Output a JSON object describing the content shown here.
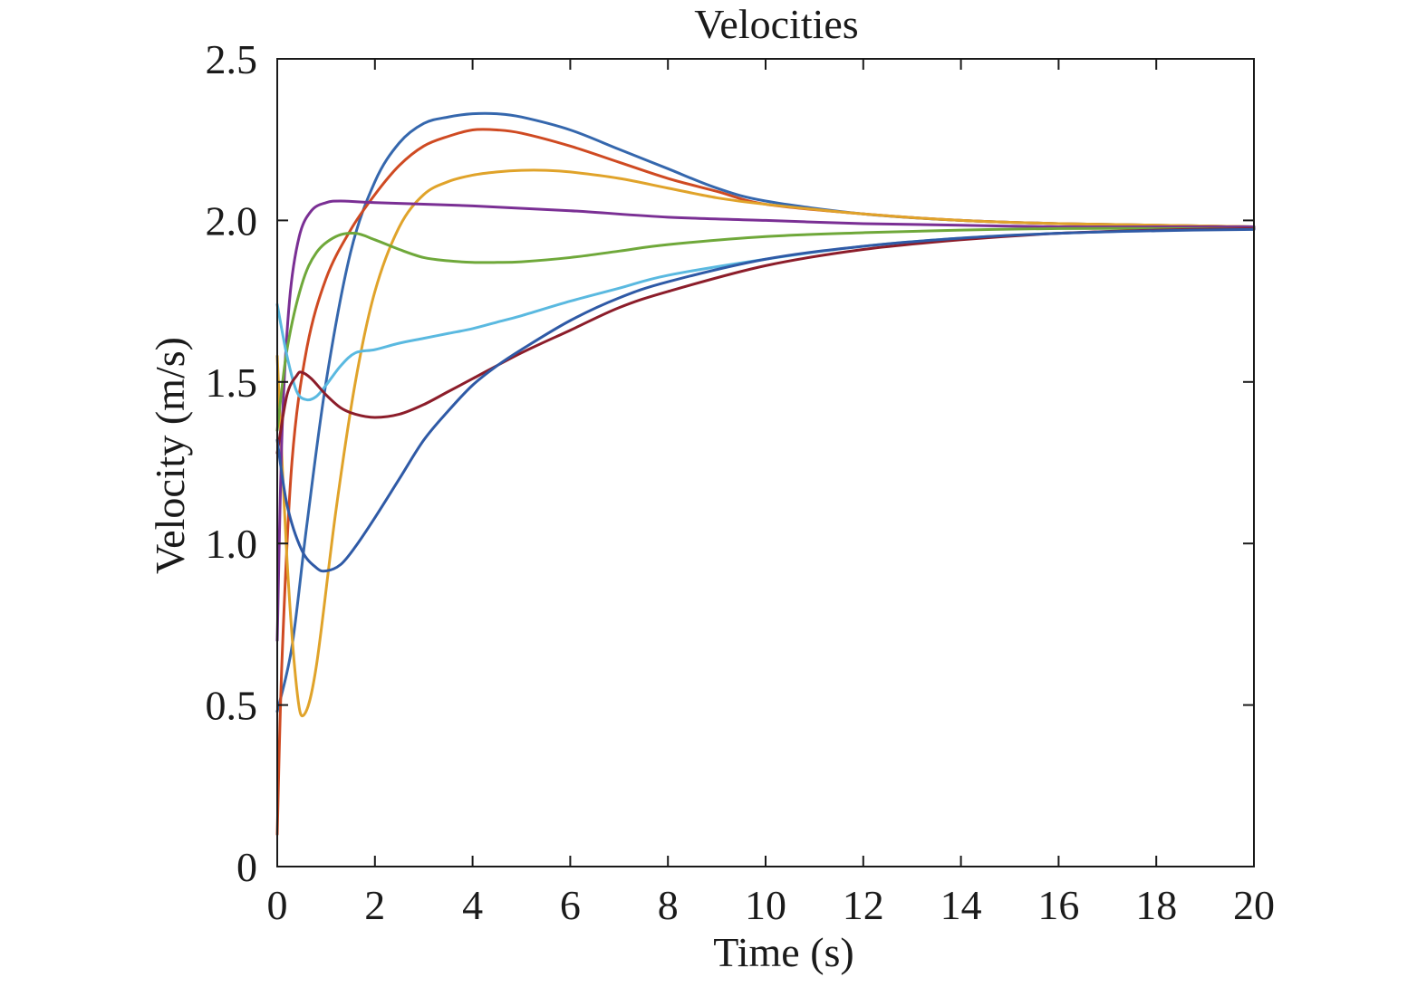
{
  "chart_data": {
    "type": "line",
    "title": "Velocities",
    "xlabel": "Time (s)",
    "ylabel": "Velocity (m/s)",
    "xlim": [
      0,
      20
    ],
    "ylim": [
      0,
      2.5
    ],
    "x_ticks": [
      0,
      2,
      4,
      6,
      8,
      10,
      12,
      14,
      16,
      18,
      20
    ],
    "x_tick_labels": [
      "0",
      "2",
      "4",
      "6",
      "8",
      "10",
      "12",
      "14",
      "16",
      "18",
      "20"
    ],
    "y_ticks": [
      0,
      0.5,
      1.0,
      1.5,
      2.0,
      2.5
    ],
    "y_tick_labels": [
      "0",
      "0.5",
      "1.0",
      "1.5",
      "2.0",
      "2.5"
    ],
    "grid": false,
    "legend": "none",
    "series": [
      {
        "color": "#3567ad",
        "x": [
          0,
          0.3,
          0.6,
          1.0,
          1.5,
          2.0,
          2.5,
          3.0,
          3.5,
          4.0,
          4.5,
          5.0,
          6.0,
          7.0,
          8.0,
          9.0,
          10.0,
          12.0,
          14.0,
          16.0,
          18.0,
          20.0
        ],
        "values": [
          0.48,
          0.68,
          1.05,
          1.5,
          1.9,
          2.12,
          2.24,
          2.3,
          2.32,
          2.33,
          2.33,
          2.32,
          2.28,
          2.22,
          2.16,
          2.1,
          2.06,
          2.02,
          2.0,
          1.99,
          1.985,
          1.98
        ]
      },
      {
        "color": "#cf4a22",
        "x": [
          0,
          0.1,
          0.3,
          0.6,
          1.0,
          1.5,
          2.0,
          2.5,
          3.0,
          3.5,
          4.0,
          4.5,
          5.0,
          6.0,
          7.0,
          8.0,
          9.0,
          10.0,
          12.0,
          14.0,
          16.0,
          18.0,
          20.0
        ],
        "values": [
          0.1,
          0.65,
          1.25,
          1.6,
          1.82,
          1.97,
          2.08,
          2.17,
          2.23,
          2.26,
          2.28,
          2.28,
          2.27,
          2.23,
          2.18,
          2.13,
          2.09,
          2.05,
          2.02,
          2.0,
          1.99,
          1.985,
          1.98
        ]
      },
      {
        "color": "#e0a32a",
        "x": [
          0,
          0.2,
          0.4,
          0.55,
          0.8,
          1.2,
          1.6,
          2.0,
          2.5,
          3.0,
          3.5,
          4.0,
          4.5,
          5.0,
          5.5,
          6.0,
          7.0,
          8.0,
          9.0,
          10.0,
          12.0,
          14.0,
          16.0,
          18.0,
          20.0
        ],
        "values": [
          1.58,
          0.95,
          0.55,
          0.47,
          0.62,
          1.1,
          1.5,
          1.78,
          1.98,
          2.08,
          2.12,
          2.14,
          2.15,
          2.155,
          2.155,
          2.15,
          2.13,
          2.1,
          2.07,
          2.05,
          2.02,
          2.0,
          1.99,
          1.985,
          1.98
        ]
      },
      {
        "color": "#7a2f94",
        "x": [
          0,
          0.1,
          0.25,
          0.45,
          0.7,
          1.0,
          1.3,
          2.0,
          4.0,
          6.0,
          8.0,
          10.0,
          12.0,
          14.0,
          16.0,
          18.0,
          20.0
        ],
        "values": [
          0.7,
          1.35,
          1.75,
          1.95,
          2.03,
          2.055,
          2.06,
          2.055,
          2.045,
          2.03,
          2.01,
          2.0,
          1.99,
          1.985,
          1.98,
          1.98,
          1.98
        ]
      },
      {
        "color": "#6fa83a",
        "x": [
          0,
          0.2,
          0.5,
          0.8,
          1.2,
          1.6,
          2.0,
          2.5,
          3.0,
          3.5,
          4.0,
          4.5,
          5.0,
          6.0,
          7.0,
          8.0,
          10.0,
          12.0,
          14.0,
          16.0,
          18.0,
          20.0
        ],
        "values": [
          1.35,
          1.6,
          1.8,
          1.9,
          1.95,
          1.96,
          1.94,
          1.91,
          1.885,
          1.875,
          1.87,
          1.87,
          1.872,
          1.885,
          1.905,
          1.925,
          1.95,
          1.962,
          1.97,
          1.975,
          1.975,
          1.975
        ]
      },
      {
        "color": "#5ab9e0",
        "x": [
          0,
          0.2,
          0.4,
          0.6,
          0.8,
          1.0,
          1.3,
          1.6,
          2.0,
          2.5,
          3.0,
          3.5,
          4.0,
          4.5,
          5.0,
          6.0,
          7.0,
          8.0,
          10.0,
          12.0,
          14.0,
          16.0,
          18.0,
          20.0
        ],
        "values": [
          1.74,
          1.58,
          1.47,
          1.445,
          1.455,
          1.49,
          1.55,
          1.59,
          1.6,
          1.62,
          1.635,
          1.65,
          1.665,
          1.685,
          1.705,
          1.75,
          1.79,
          1.83,
          1.88,
          1.92,
          1.945,
          1.96,
          1.97,
          1.975
        ]
      },
      {
        "color": "#8c1d2a",
        "x": [
          0,
          0.2,
          0.4,
          0.5,
          0.7,
          1.0,
          1.3,
          1.6,
          2.0,
          2.5,
          3.0,
          3.5,
          4.0,
          5.0,
          6.0,
          7.0,
          8.0,
          10.0,
          12.0,
          14.0,
          16.0,
          18.0,
          20.0
        ],
        "values": [
          1.28,
          1.46,
          1.52,
          1.53,
          1.51,
          1.46,
          1.42,
          1.4,
          1.39,
          1.4,
          1.43,
          1.47,
          1.51,
          1.59,
          1.66,
          1.73,
          1.78,
          1.86,
          1.91,
          1.94,
          1.96,
          1.97,
          1.975
        ]
      },
      {
        "color": "#2f5aa6",
        "x": [
          0,
          0.2,
          0.5,
          0.8,
          1.0,
          1.3,
          1.6,
          2.0,
          2.5,
          3.0,
          3.5,
          4.0,
          4.5,
          5.0,
          6.0,
          7.0,
          8.0,
          10.0,
          12.0,
          14.0,
          16.0,
          18.0,
          20.0
        ],
        "values": [
          1.32,
          1.12,
          0.98,
          0.925,
          0.915,
          0.935,
          0.99,
          1.08,
          1.2,
          1.32,
          1.41,
          1.49,
          1.55,
          1.6,
          1.69,
          1.76,
          1.81,
          1.88,
          1.92,
          1.945,
          1.96,
          1.968,
          1.972
        ]
      }
    ]
  }
}
